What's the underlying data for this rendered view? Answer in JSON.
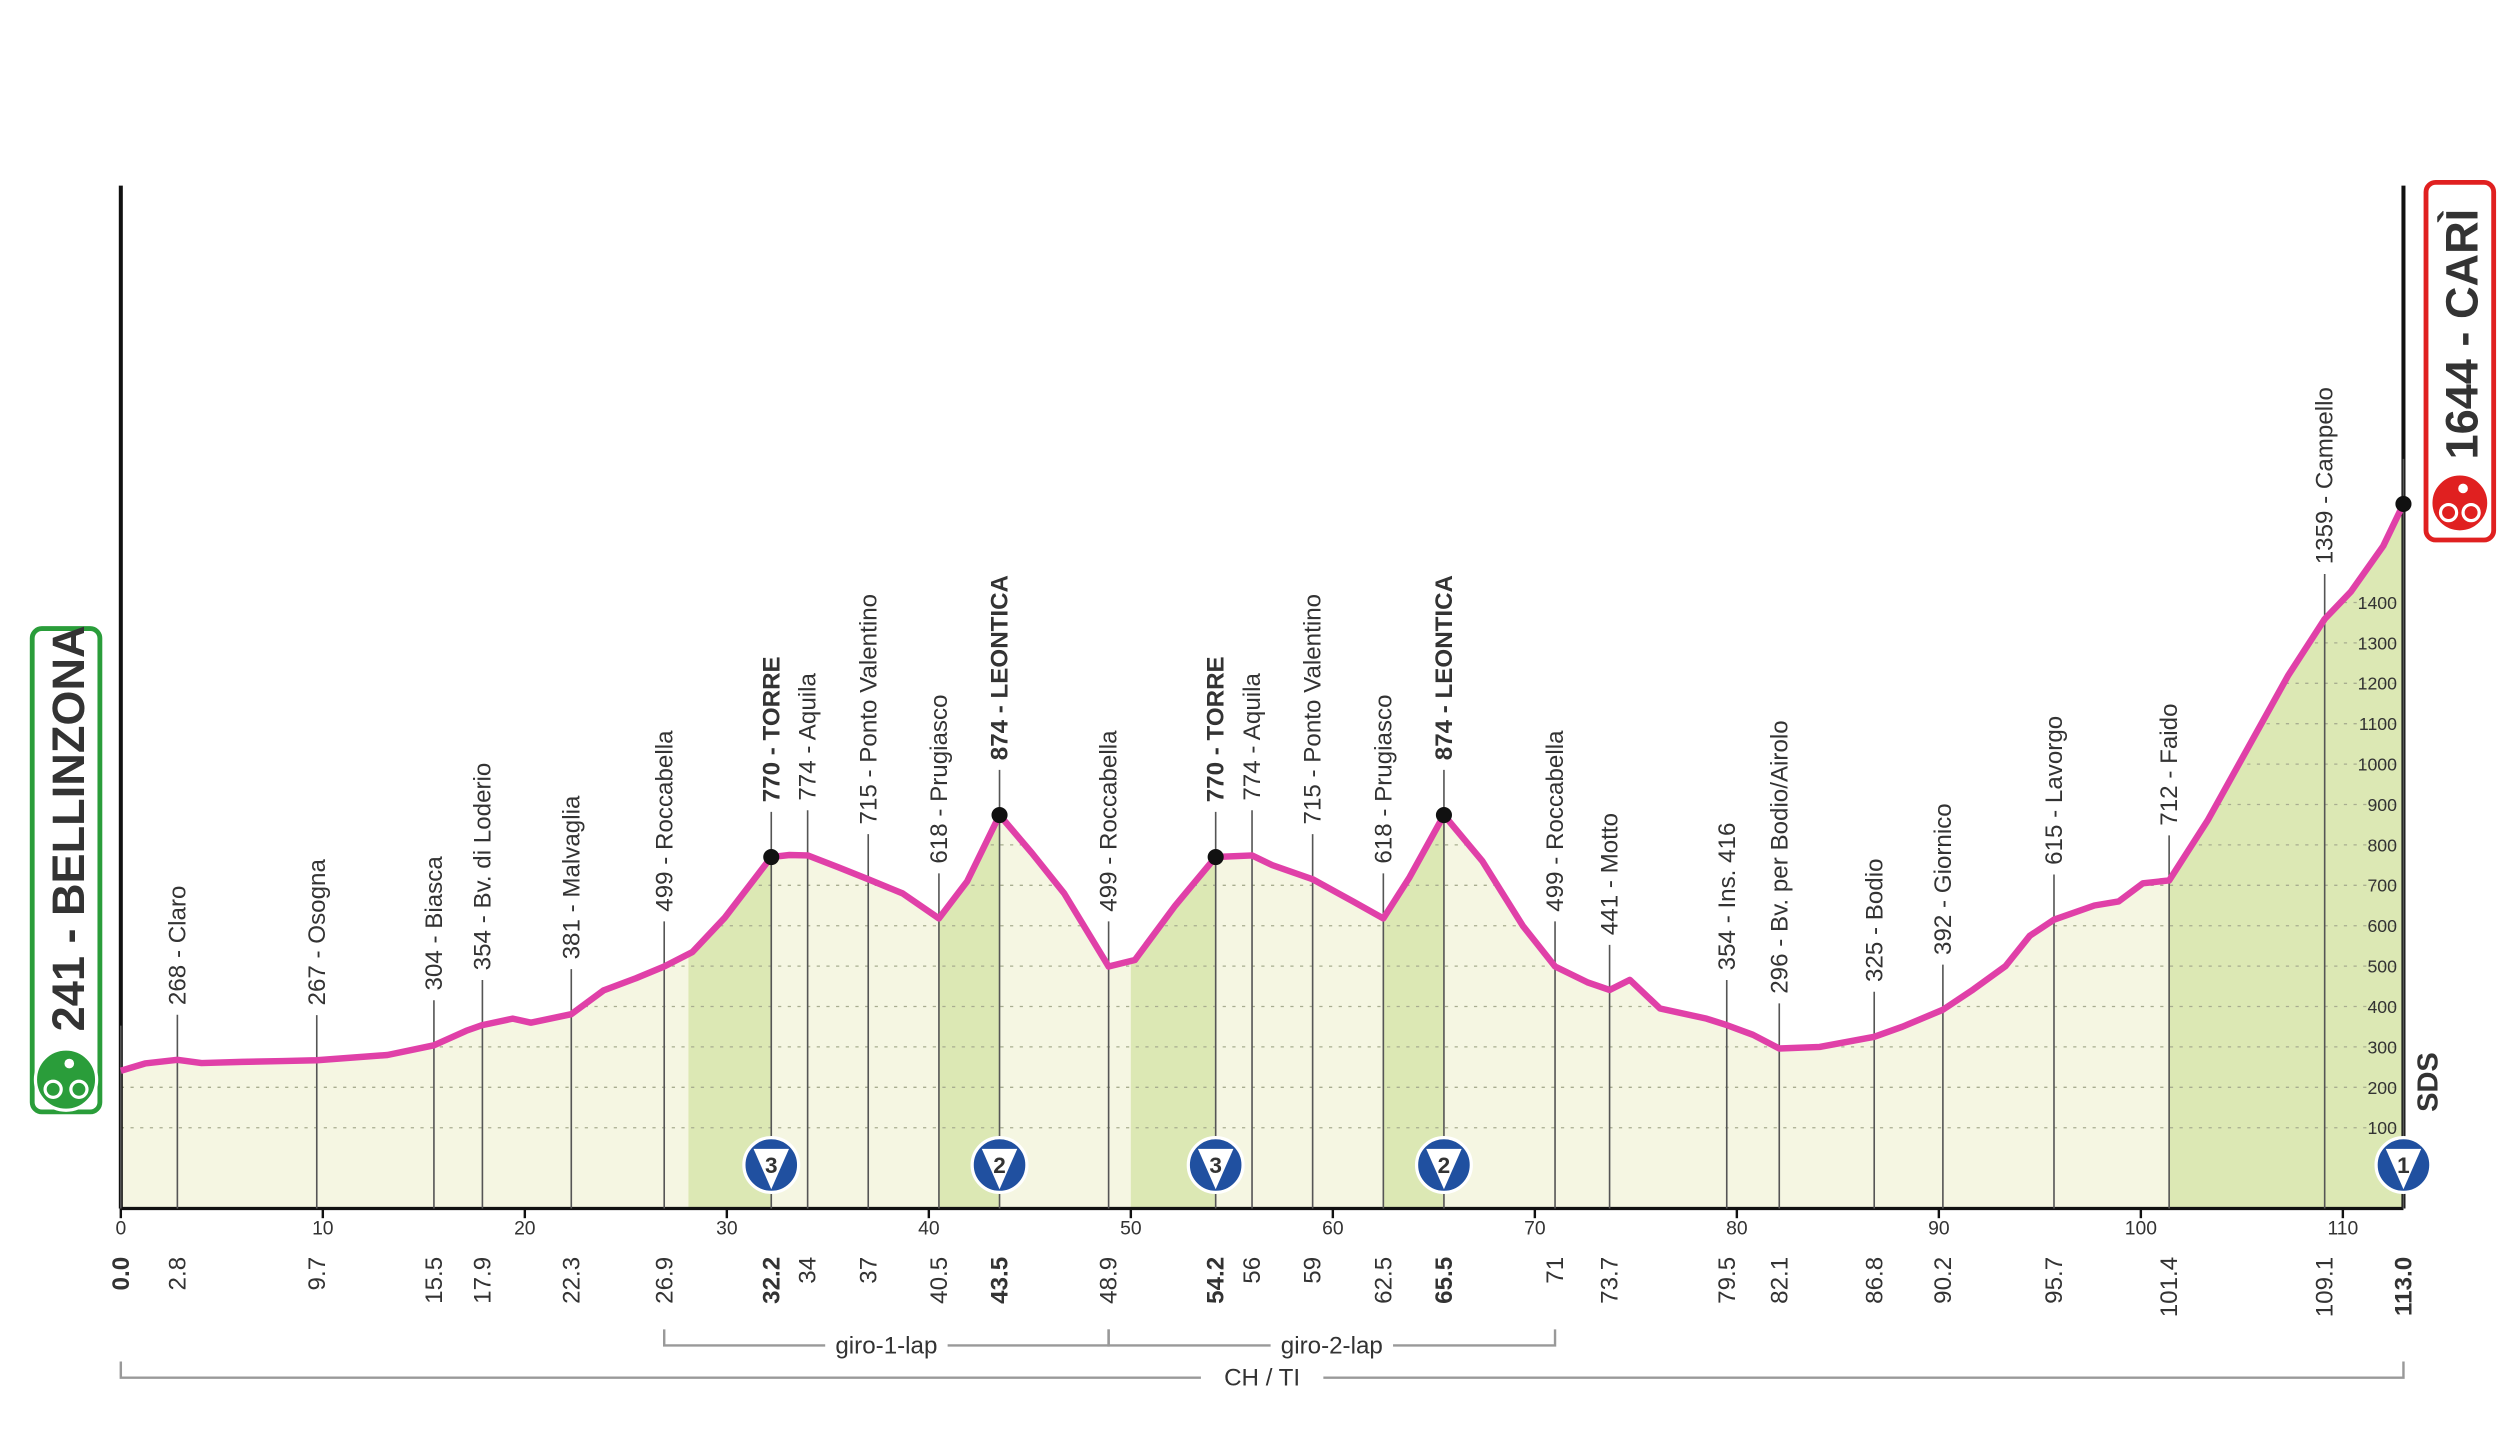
{
  "chart_data": {
    "type": "profile",
    "xlim": [
      0,
      113
    ],
    "ylim": [
      -100,
      2400
    ],
    "xticks": [
      0,
      10,
      20,
      30,
      40,
      50,
      60,
      70,
      80,
      90,
      100,
      110
    ],
    "yticks": [
      100,
      200,
      300,
      400,
      500,
      600,
      700,
      800,
      900,
      1000,
      1100,
      1200,
      1300,
      1400
    ],
    "grid": true,
    "line_color": "#e040a8",
    "logo": "SDS",
    "start": {
      "label": "241 - BELLINZONA",
      "km": {
        "value": 0,
        "label": "0.0"
      },
      "color": "#2a9d3a"
    },
    "finish": {
      "label": "1644 - CARÌ",
      "km": {
        "value": 113,
        "label": "113.0"
      },
      "category": 1,
      "color": "#e02020"
    },
    "profile": {
      "km": [
        0,
        1.2,
        2.8,
        4,
        6,
        8,
        9.7,
        13.2,
        15.5,
        17.1,
        17.9,
        19.4,
        20.3,
        22.3,
        23.9,
        25.5,
        26.9,
        28.3,
        29.9,
        32.2,
        33.1,
        34.0,
        35.5,
        37.0,
        38.7,
        40.5,
        41.9,
        43.5,
        45.1,
        46.7,
        48.9,
        50.2,
        52.2,
        54.2,
        56.0,
        57.0,
        59.0,
        61.0,
        62.5,
        63.8,
        65.5,
        67.4,
        69.4,
        71.0,
        72.6,
        73.7,
        74.7,
        76.2,
        78.5,
        79.5,
        80.8,
        82.1,
        84.1,
        86.8,
        88.2,
        90.2,
        91.7,
        93.3,
        94.5,
        95.7,
        97.7,
        98.9,
        100.1,
        101.4,
        103.3,
        105.3,
        107.3,
        109.1,
        110.4,
        112,
        113
      ],
      "altitude": [
        241,
        259,
        268,
        260,
        263,
        265,
        267,
        280,
        304,
        340,
        354,
        370,
        360,
        381,
        440,
        470,
        499,
        535,
        620,
        770,
        775,
        774,
        745,
        715,
        680,
        618,
        710,
        874,
        780,
        680,
        499,
        515,
        650,
        770,
        774,
        750,
        715,
        660,
        618,
        720,
        874,
        760,
        600,
        499,
        460,
        441,
        466,
        395,
        370,
        354,
        330,
        296,
        300,
        325,
        350,
        392,
        442,
        500,
        575,
        615,
        650,
        660,
        705,
        712,
        860,
        1040,
        1220,
        1359,
        1427,
        1540,
        1644
      ]
    },
    "climbs": [
      {
        "from": 28.1,
        "to": 32.2
      },
      {
        "from": 40.5,
        "to": 43.5
      },
      {
        "from": 50.0,
        "to": 54.2
      },
      {
        "from": 62.5,
        "to": 65.5
      },
      {
        "from": 101.4,
        "to": 113
      }
    ],
    "waypoints": [
      {
        "km": 2.8,
        "label": "268 - Claro"
      },
      {
        "km": 9.7,
        "label": "267 - Osogna"
      },
      {
        "km": 15.5,
        "label": "304 - Biasca"
      },
      {
        "km": 17.9,
        "label": "354 - Bv. di Loderio"
      },
      {
        "km": 22.3,
        "label": "381 - Malvaglia"
      },
      {
        "km": 26.9,
        "label": "499 - Roccabella"
      },
      {
        "km": 32.2,
        "label": "770 - TORRE",
        "category": 3
      },
      {
        "km": 34.0,
        "label": "774 - Aquila"
      },
      {
        "km": 37.0,
        "label": "715 - Ponto Valentino"
      },
      {
        "km": 40.5,
        "label": "618 - Prugiasco"
      },
      {
        "km": 43.5,
        "label": "874 - LEONTICA",
        "category": 2
      },
      {
        "km": 48.9,
        "label": "499 - Roccabella"
      },
      {
        "km": 54.2,
        "label": "770 - TORRE",
        "category": 3
      },
      {
        "km": 56.0,
        "label": "774 - Aquila"
      },
      {
        "km": 59.0,
        "label": "715 - Ponto Valentino"
      },
      {
        "km": 62.5,
        "label": "618 - Prugiasco"
      },
      {
        "km": 65.5,
        "label": "874 - LEONTICA",
        "category": 2
      },
      {
        "km": 71.0,
        "label": "499 - Roccabella"
      },
      {
        "km": 73.7,
        "label": "441 - Motto"
      },
      {
        "km": 79.5,
        "label": "354 - Ins. 416"
      },
      {
        "km": 82.1,
        "label": "296 - Bv. per Bodio/Airolo"
      },
      {
        "km": 86.8,
        "label": "325 - Bodio"
      },
      {
        "km": 90.2,
        "label": "392 - Giornico"
      },
      {
        "km": 95.7,
        "label": "615 - Lavorgo"
      },
      {
        "km": 101.4,
        "label": "712 - Faido"
      },
      {
        "km": 109.1,
        "label": "1359 - Campello"
      }
    ],
    "sections": [
      {
        "label": "giro-1-lap",
        "from": 26.9,
        "to": 48.9,
        "row": 1
      },
      {
        "label": "giro-2-lap",
        "from": 48.9,
        "to": 71.0,
        "row": 1
      },
      {
        "label": "CH / TI",
        "from": 0,
        "to": 113,
        "row": 2
      }
    ]
  }
}
